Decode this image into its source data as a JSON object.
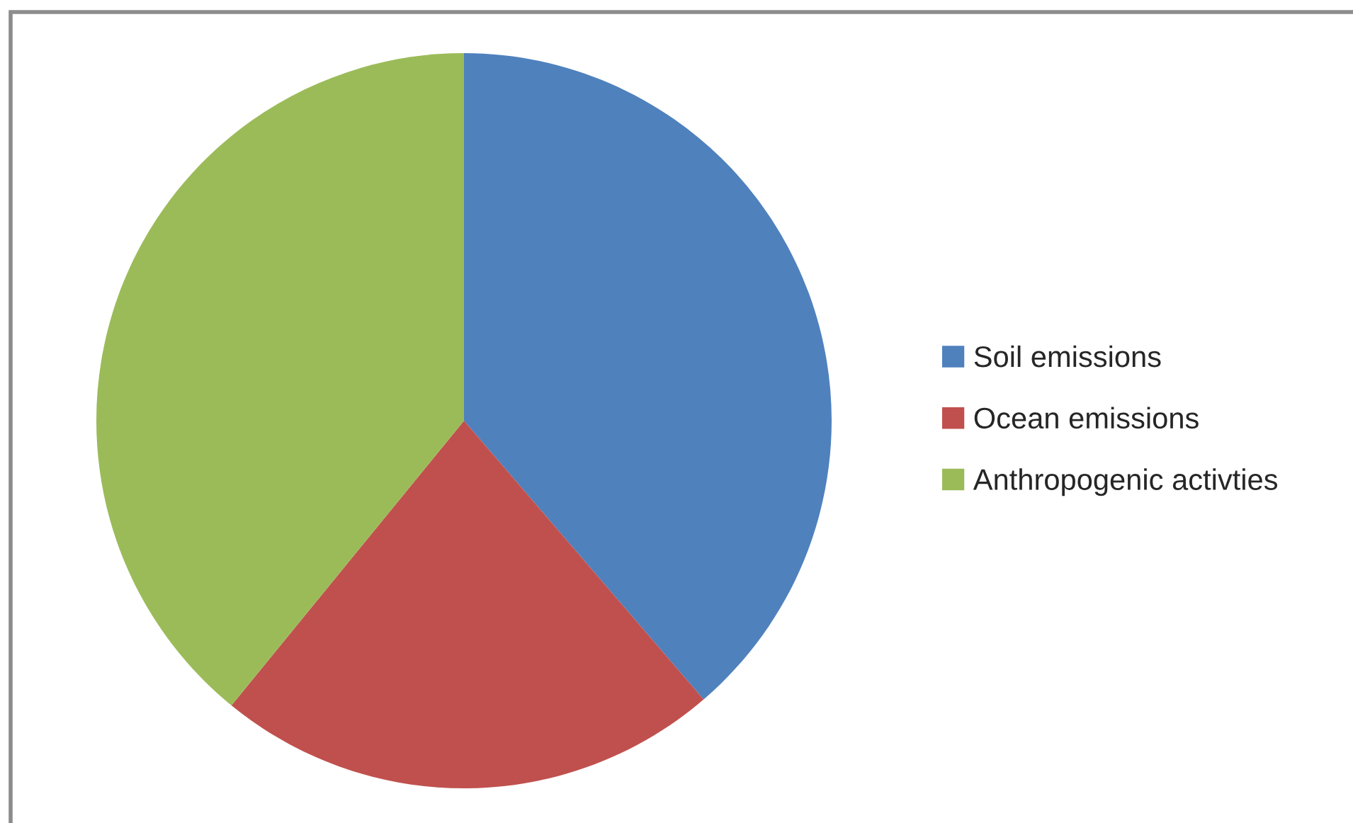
{
  "chart_data": {
    "type": "pie",
    "categories": [
      "Soil emissions",
      "Ocean emissions",
      "Anthropogenic activties"
    ],
    "values": [
      38.7,
      22.2,
      39.1
    ],
    "colors": [
      "#4f81bd",
      "#c0504d",
      "#9bbb59"
    ],
    "legend": "right"
  }
}
